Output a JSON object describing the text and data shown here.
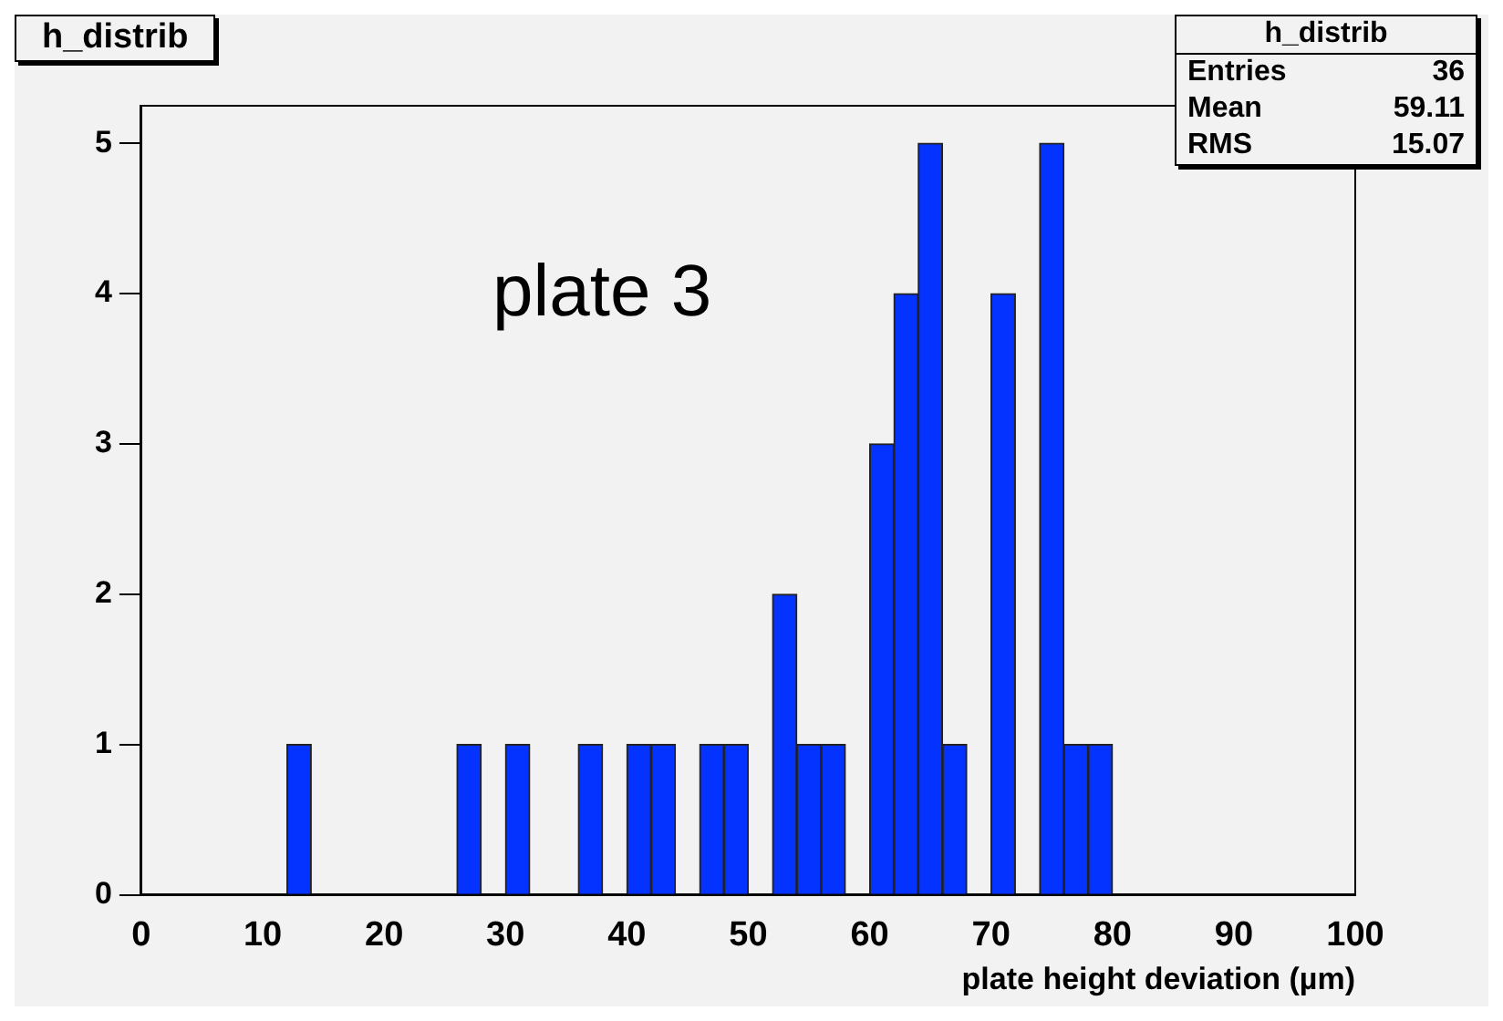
{
  "chart_data": {
    "type": "histogram",
    "title": "h_distrib",
    "xlabel": "plate height deviation (µm)",
    "bins": [
      0,
      2,
      4,
      6,
      8,
      10,
      12,
      14,
      16,
      18,
      20,
      22,
      24,
      26,
      28,
      30,
      32,
      34,
      36,
      38,
      40,
      42,
      44,
      46,
      48,
      50,
      52,
      54,
      56,
      58,
      60,
      62,
      64,
      66,
      68,
      70,
      72,
      74,
      76,
      78,
      80,
      82,
      84,
      86,
      88,
      90,
      92,
      94,
      96,
      98,
      100
    ],
    "values": [
      0,
      0,
      0,
      0,
      0,
      0,
      1,
      0,
      0,
      0,
      0,
      0,
      0,
      1,
      0,
      1,
      0,
      0,
      1,
      0,
      1,
      1,
      0,
      1,
      1,
      0,
      2,
      1,
      1,
      0,
      3,
      4,
      5,
      1,
      0,
      4,
      0,
      5,
      1,
      1,
      0,
      0,
      0,
      0,
      0,
      0,
      0,
      0,
      0,
      0
    ],
    "color": "#0433ff",
    "xlim": [
      0,
      100
    ],
    "xticks": [
      0,
      10,
      20,
      30,
      40,
      50,
      60,
      70,
      80,
      90,
      100
    ],
    "ylim": [
      0,
      5.25
    ],
    "yticks": [
      0,
      1,
      2,
      3,
      4,
      5
    ],
    "grid": false,
    "legend": false,
    "annotations": [
      "plate 3",
      "h_distrib",
      "Entries",
      "36",
      "Mean",
      "59.11",
      "RMS",
      "15.07"
    ]
  }
}
